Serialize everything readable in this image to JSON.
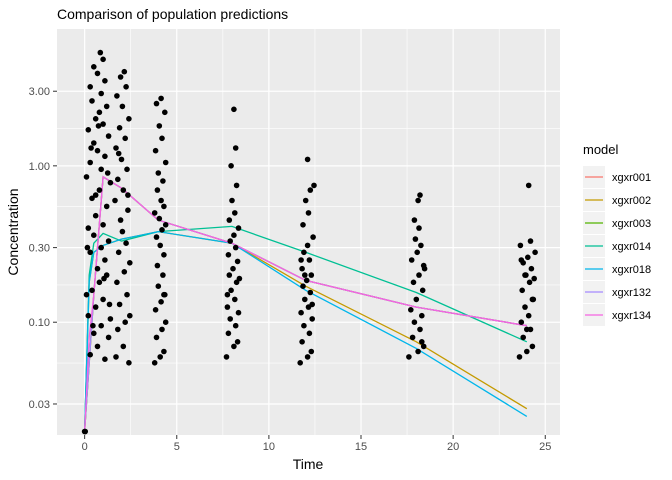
{
  "chart_data": {
    "type": "scatter",
    "title": "Comparison of population predictions",
    "xlabel": "Time",
    "ylabel": "Concentration",
    "xlim": [
      -1.5,
      25.8
    ],
    "ylim": [
      0.019,
      7.5
    ],
    "y_scale": "log10",
    "x_ticks": [
      0,
      5,
      10,
      15,
      20,
      25
    ],
    "y_ticks": [
      0.03,
      0.1,
      0.3,
      1.0,
      3.0
    ],
    "y_tick_labels": [
      "0.03",
      "0.10",
      "0.30",
      "1.00",
      "3.00"
    ],
    "grid": true,
    "legend": {
      "title": "model",
      "position": "right"
    },
    "observations": {
      "color": "#000000",
      "points": [
        [
          0.02,
          0.02
        ],
        [
          0.0,
          0.02
        ],
        [
          0.03,
          0.02
        ],
        [
          0.3,
          0.062
        ],
        [
          0.7,
          0.07
        ],
        [
          1.1,
          0.058
        ],
        [
          0.5,
          0.085
        ],
        [
          0.9,
          0.095
        ],
        [
          1.3,
          0.08
        ],
        [
          0.2,
          0.11
        ],
        [
          0.6,
          0.125
        ],
        [
          1.0,
          0.14
        ],
        [
          1.4,
          0.105
        ],
        [
          0.4,
          0.16
        ],
        [
          0.8,
          0.18
        ],
        [
          1.2,
          0.2
        ],
        [
          0.1,
          0.15
        ],
        [
          0.7,
          0.22
        ],
        [
          1.1,
          0.25
        ],
        [
          0.3,
          0.28
        ],
        [
          0.9,
          0.3
        ],
        [
          1.3,
          0.33
        ],
        [
          0.5,
          0.36
        ],
        [
          0.2,
          0.4
        ],
        [
          1.0,
          0.42
        ],
        [
          0.6,
          0.48
        ],
        [
          1.2,
          0.55
        ],
        [
          0.4,
          0.62
        ],
        [
          0.8,
          0.7
        ],
        [
          1.4,
          0.78
        ],
        [
          0.1,
          0.85
        ],
        [
          0.9,
          0.95
        ],
        [
          0.3,
          1.05
        ],
        [
          1.1,
          1.15
        ],
        [
          0.7,
          1.25
        ],
        [
          0.5,
          1.4
        ],
        [
          1.3,
          1.55
        ],
        [
          0.2,
          1.7
        ],
        [
          1.0,
          1.85
        ],
        [
          0.6,
          2.0
        ],
        [
          0.8,
          2.2
        ],
        [
          1.2,
          2.4
        ],
        [
          0.4,
          2.6
        ],
        [
          0.9,
          2.9
        ],
        [
          0.3,
          3.2
        ],
        [
          1.1,
          3.5
        ],
        [
          0.7,
          3.9
        ],
        [
          0.5,
          4.3
        ],
        [
          1.0,
          4.8
        ],
        [
          0.85,
          5.3
        ],
        [
          0.6,
          0.65
        ],
        [
          1.25,
          0.9
        ],
        [
          0.35,
          1.3
        ],
        [
          0.75,
          1.8
        ],
        [
          0.15,
          0.3
        ],
        [
          1.05,
          0.19
        ],
        [
          0.45,
          0.095
        ],
        [
          1.35,
          0.13
        ],
        [
          1.7,
          0.06
        ],
        [
          2.1,
          0.07
        ],
        [
          2.4,
          0.055
        ],
        [
          1.8,
          0.09
        ],
        [
          2.2,
          0.1
        ],
        [
          1.9,
          0.13
        ],
        [
          2.3,
          0.15
        ],
        [
          1.75,
          0.18
        ],
        [
          2.15,
          0.21
        ],
        [
          2.45,
          0.24
        ],
        [
          1.85,
          0.28
        ],
        [
          2.25,
          0.32
        ],
        [
          2.05,
          0.38
        ],
        [
          1.95,
          0.45
        ],
        [
          2.35,
          0.52
        ],
        [
          1.65,
          0.6
        ],
        [
          2.1,
          0.7
        ],
        [
          1.8,
          0.82
        ],
        [
          2.3,
          0.95
        ],
        [
          2.0,
          1.1
        ],
        [
          1.7,
          1.3
        ],
        [
          2.2,
          1.5
        ],
        [
          1.9,
          1.75
        ],
        [
          2.4,
          2.0
        ],
        [
          2.05,
          2.4
        ],
        [
          1.75,
          2.8
        ],
        [
          2.25,
          3.2
        ],
        [
          1.95,
          3.7
        ],
        [
          2.15,
          4.0
        ],
        [
          1.85,
          1.2
        ],
        [
          2.35,
          0.65
        ],
        [
          2.45,
          0.11
        ],
        [
          3.8,
          0.055
        ],
        [
          4.1,
          0.06
        ],
        [
          4.3,
          0.065
        ],
        [
          3.9,
          0.08
        ],
        [
          4.2,
          0.09
        ],
        [
          4.4,
          0.1
        ],
        [
          3.85,
          0.12
        ],
        [
          4.15,
          0.135
        ],
        [
          4.35,
          0.15
        ],
        [
          4.0,
          0.17
        ],
        [
          4.25,
          0.2
        ],
        [
          3.95,
          0.23
        ],
        [
          4.3,
          0.27
        ],
        [
          4.1,
          0.31
        ],
        [
          3.9,
          0.35
        ],
        [
          4.2,
          0.39
        ],
        [
          4.4,
          0.42
        ],
        [
          4.05,
          0.46
        ],
        [
          3.8,
          0.5
        ],
        [
          4.3,
          0.55
        ],
        [
          4.15,
          0.6
        ],
        [
          3.95,
          0.7
        ],
        [
          4.25,
          0.8
        ],
        [
          4.0,
          0.9
        ],
        [
          4.4,
          1.05
        ],
        [
          3.85,
          1.25
        ],
        [
          4.2,
          1.5
        ],
        [
          4.05,
          1.8
        ],
        [
          4.35,
          2.2
        ],
        [
          3.9,
          2.5
        ],
        [
          4.15,
          2.7
        ],
        [
          4.3,
          0.15
        ],
        [
          7.7,
          0.06
        ],
        [
          8.1,
          0.07
        ],
        [
          8.3,
          0.075
        ],
        [
          7.8,
          0.085
        ],
        [
          8.2,
          0.095
        ],
        [
          7.9,
          0.105
        ],
        [
          8.35,
          0.115
        ],
        [
          7.75,
          0.125
        ],
        [
          8.15,
          0.14
        ],
        [
          7.95,
          0.16
        ],
        [
          8.25,
          0.18
        ],
        [
          7.85,
          0.2
        ],
        [
          8.05,
          0.22
        ],
        [
          8.3,
          0.245
        ],
        [
          7.8,
          0.27
        ],
        [
          8.2,
          0.3
        ],
        [
          7.9,
          0.33
        ],
        [
          8.1,
          0.36
        ],
        [
          8.35,
          0.4
        ],
        [
          7.85,
          0.45
        ],
        [
          8.15,
          0.5
        ],
        [
          8.0,
          0.6
        ],
        [
          8.25,
          0.75
        ],
        [
          7.95,
          1.0
        ],
        [
          8.2,
          1.3
        ],
        [
          8.1,
          2.3
        ],
        [
          8.4,
          0.19
        ],
        [
          7.75,
          0.15
        ],
        [
          11.7,
          0.055
        ],
        [
          12.1,
          0.06
        ],
        [
          12.3,
          0.065
        ],
        [
          11.8,
          0.075
        ],
        [
          12.2,
          0.085
        ],
        [
          11.9,
          0.095
        ],
        [
          12.35,
          0.105
        ],
        [
          11.75,
          0.115
        ],
        [
          12.15,
          0.125
        ],
        [
          11.95,
          0.14
        ],
        [
          12.25,
          0.155
        ],
        [
          11.85,
          0.17
        ],
        [
          12.05,
          0.185
        ],
        [
          12.3,
          0.2
        ],
        [
          11.8,
          0.22
        ],
        [
          12.2,
          0.25
        ],
        [
          11.9,
          0.28
        ],
        [
          12.1,
          0.31
        ],
        [
          12.4,
          0.35
        ],
        [
          11.85,
          0.42
        ],
        [
          12.15,
          0.5
        ],
        [
          12.0,
          0.6
        ],
        [
          12.25,
          0.7
        ],
        [
          12.45,
          0.75
        ],
        [
          11.75,
          0.25
        ],
        [
          12.1,
          1.1
        ],
        [
          12.35,
          0.13
        ],
        [
          11.95,
          0.2
        ],
        [
          17.6,
          0.06
        ],
        [
          18.1,
          0.065
        ],
        [
          18.4,
          0.07
        ],
        [
          17.8,
          0.08
        ],
        [
          18.2,
          0.09
        ],
        [
          17.9,
          0.1
        ],
        [
          18.3,
          0.11
        ],
        [
          17.7,
          0.12
        ],
        [
          18.0,
          0.14
        ],
        [
          18.35,
          0.16
        ],
        [
          17.85,
          0.18
        ],
        [
          18.15,
          0.2
        ],
        [
          18.45,
          0.22
        ],
        [
          17.75,
          0.25
        ],
        [
          18.05,
          0.28
        ],
        [
          18.25,
          0.31
        ],
        [
          17.95,
          0.34
        ],
        [
          18.15,
          0.4
        ],
        [
          17.9,
          0.45
        ],
        [
          18.1,
          0.6
        ],
        [
          18.2,
          0.65
        ],
        [
          18.3,
          0.075
        ],
        [
          18.4,
          0.23
        ],
        [
          23.6,
          0.06
        ],
        [
          24.0,
          0.065
        ],
        [
          24.3,
          0.07
        ],
        [
          23.8,
          0.08
        ],
        [
          24.2,
          0.09
        ],
        [
          23.7,
          0.1
        ],
        [
          24.1,
          0.11
        ],
        [
          23.9,
          0.125
        ],
        [
          24.35,
          0.14
        ],
        [
          23.75,
          0.16
        ],
        [
          24.15,
          0.18
        ],
        [
          23.95,
          0.2
        ],
        [
          24.25,
          0.22
        ],
        [
          23.8,
          0.24
        ],
        [
          24.05,
          0.26
        ],
        [
          24.45,
          0.28
        ],
        [
          23.65,
          0.31
        ],
        [
          24.2,
          0.33
        ],
        [
          23.9,
          0.2
        ],
        [
          24.1,
          0.75
        ],
        [
          24.3,
          0.14
        ],
        [
          23.7,
          0.25
        ],
        [
          24.4,
          0.19
        ],
        [
          24.0,
          0.09
        ]
      ]
    },
    "series": [
      {
        "name": "xgxr001",
        "color": "#F8766D",
        "x": [
          0,
          0.5,
          1,
          2,
          4,
          8,
          12,
          18,
          24
        ],
        "y": [
          0.02,
          0.15,
          0.85,
          0.72,
          0.45,
          0.32,
          0.185,
          0.125,
          0.095
        ]
      },
      {
        "name": "xgxr002",
        "color": "#C49A00",
        "x": [
          0,
          0.25,
          0.5,
          1,
          2,
          4,
          8,
          12,
          18,
          24
        ],
        "y": [
          0.02,
          0.18,
          0.28,
          0.31,
          0.34,
          0.38,
          0.32,
          0.17,
          0.075,
          0.028
        ]
      },
      {
        "name": "xgxr003",
        "color": "#53B400",
        "x": [
          0,
          0.5,
          1,
          2,
          4,
          8,
          12,
          18,
          24
        ],
        "y": [
          0.02,
          0.15,
          0.85,
          0.72,
          0.45,
          0.32,
          0.185,
          0.125,
          0.095
        ]
      },
      {
        "name": "xgxr014",
        "color": "#00C094",
        "x": [
          0,
          0.25,
          0.5,
          1,
          2,
          4,
          8,
          12,
          18,
          24
        ],
        "y": [
          0.02,
          0.2,
          0.32,
          0.37,
          0.33,
          0.38,
          0.41,
          0.28,
          0.155,
          0.075
        ]
      },
      {
        "name": "xgxr018",
        "color": "#00B6EB",
        "x": [
          0,
          0.25,
          0.5,
          1,
          2,
          4,
          8,
          12,
          18,
          24
        ],
        "y": [
          0.02,
          0.18,
          0.28,
          0.31,
          0.34,
          0.38,
          0.32,
          0.16,
          0.068,
          0.025
        ]
      },
      {
        "name": "xgxr132",
        "color": "#A58AFF",
        "x": [
          0,
          0.5,
          1,
          2,
          4,
          8,
          12,
          18,
          24
        ],
        "y": [
          0.02,
          0.15,
          0.85,
          0.72,
          0.45,
          0.32,
          0.185,
          0.125,
          0.095
        ]
      },
      {
        "name": "xgxr134",
        "color": "#F564E3",
        "x": [
          0,
          0.25,
          0.5,
          1,
          2,
          4,
          8,
          12,
          18,
          24
        ],
        "y": [
          0.02,
          0.08,
          0.15,
          0.85,
          0.72,
          0.45,
          0.32,
          0.185,
          0.125,
          0.095
        ]
      }
    ]
  }
}
